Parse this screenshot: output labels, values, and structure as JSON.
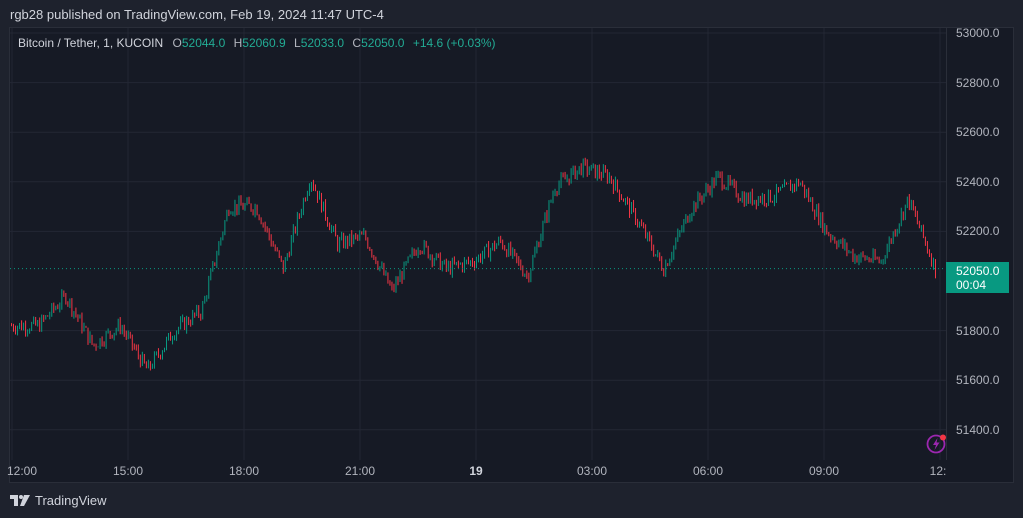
{
  "header": {
    "publish_line": "rgb28 published on TradingView.com, Feb 19, 2024 11:47 UTC-4"
  },
  "legend": {
    "symbol": "Bitcoin / Tether, 1, KUCOIN",
    "open_key": "O",
    "open": "52044.0",
    "high_key": "H",
    "high": "52060.9",
    "low_key": "L",
    "low": "52033.0",
    "close_key": "C",
    "close": "52050.0",
    "change": "+14.6 (+0.03%)"
  },
  "price_tag": {
    "price": "52050.0",
    "countdown": "00:04"
  },
  "footer": {
    "brand": "TradingView"
  },
  "colors": {
    "up": "#089981",
    "down": "#f23645",
    "bg": "#161a25",
    "outer_bg": "#1e222d",
    "grid": "#232734",
    "alert_icon": "#9c27b0"
  },
  "chart_data": {
    "type": "candlestick",
    "title": "Bitcoin / Tether, 1, KUCOIN",
    "xlabel": "",
    "ylabel": "",
    "y_ticks": [
      "53000.0",
      "52800.0",
      "52600.0",
      "52400.0",
      "52200.0",
      "51800.0",
      "51600.0",
      "51400.0"
    ],
    "x_ticks": [
      "12:00",
      "15:00",
      "18:00",
      "21:00",
      "19",
      "03:00",
      "06:00",
      "09:00",
      "12:"
    ],
    "ylim": [
      51300,
      53030
    ],
    "last_price": 52050.0,
    "grid": true,
    "approx_series": {
      "x": [
        "12:00",
        "13:00",
        "14:00",
        "15:00",
        "16:00",
        "16:30",
        "17:00",
        "18:00",
        "18:15",
        "19:00",
        "19:30",
        "20:30",
        "21:00",
        "22:00",
        "22:30",
        "23:30",
        "00:00",
        "00:30",
        "01:30",
        "02:00",
        "02:30",
        "03:00",
        "03:30",
        "04:00",
        "05:00",
        "05:30",
        "06:00",
        "07:00",
        "08:00",
        "09:00",
        "09:30",
        "10:30",
        "11:00",
        "11:30",
        "11:47"
      ],
      "close": [
        51820,
        51820,
        51940,
        51740,
        51820,
        51640,
        51800,
        51880,
        52300,
        52300,
        52050,
        52420,
        52150,
        52180,
        51960,
        52150,
        52050,
        52080,
        52160,
        52020,
        52380,
        52460,
        52420,
        52250,
        52050,
        52290,
        52420,
        52330,
        52340,
        52400,
        52200,
        52100,
        52080,
        52330,
        52050
      ]
    }
  }
}
